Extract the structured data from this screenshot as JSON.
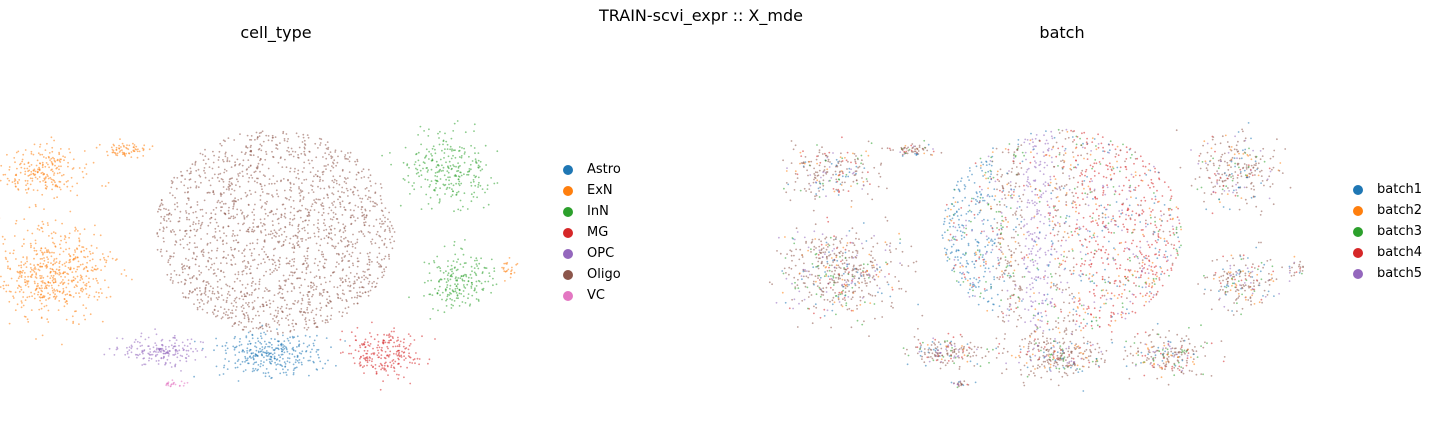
{
  "figure": {
    "suptitle": "TRAIN-scvi_expr :: X_mde"
  },
  "chart_data": [
    {
      "type": "scatter",
      "title": "cell_type",
      "xlabel": "",
      "ylabel": "",
      "axes_visible": false,
      "legend_placement": "right",
      "legend": [
        {
          "label": "Astro",
          "color": "#1f77b4"
        },
        {
          "label": "ExN",
          "color": "#ff7f0e"
        },
        {
          "label": "InN",
          "color": "#2ca02c"
        },
        {
          "label": "MG",
          "color": "#d62728"
        },
        {
          "label": "OPC",
          "color": "#9467bd"
        },
        {
          "label": "Oligo",
          "color": "#8c564b"
        },
        {
          "label": "VC",
          "color": "#e377c2"
        }
      ],
      "clusters": [
        {
          "category": "Oligo",
          "cx": 0.0,
          "cy": 0.0,
          "rx": 1.0,
          "ry": 1.0,
          "weight": 4.0
        },
        {
          "category": "ExN",
          "cx": -1.85,
          "cy": -0.5,
          "rx": 0.45,
          "ry": 0.55,
          "weight": 1.2
        },
        {
          "category": "ExN",
          "cx": -1.9,
          "cy": 0.75,
          "rx": 0.35,
          "ry": 0.3,
          "weight": 0.5
        },
        {
          "category": "ExN",
          "cx": -1.25,
          "cy": 1.0,
          "rx": 0.18,
          "ry": 0.08,
          "weight": 0.15
        },
        {
          "category": "ExN",
          "cx": 1.95,
          "cy": -0.45,
          "rx": 0.07,
          "ry": 0.12,
          "weight": 0.05
        },
        {
          "category": "InN",
          "cx": 1.45,
          "cy": 0.75,
          "rx": 0.35,
          "ry": 0.45,
          "weight": 0.6
        },
        {
          "category": "InN",
          "cx": 1.5,
          "cy": -0.6,
          "rx": 0.28,
          "ry": 0.35,
          "weight": 0.45
        },
        {
          "category": "Astro",
          "cx": -0.05,
          "cy": -1.5,
          "rx": 0.42,
          "ry": 0.28,
          "weight": 0.7
        },
        {
          "category": "MG",
          "cx": 0.9,
          "cy": -1.5,
          "rx": 0.32,
          "ry": 0.28,
          "weight": 0.5
        },
        {
          "category": "OPC",
          "cx": -0.95,
          "cy": -1.45,
          "rx": 0.3,
          "ry": 0.18,
          "weight": 0.4
        },
        {
          "category": "VC",
          "cx": -0.85,
          "cy": -1.85,
          "rx": 0.1,
          "ry": 0.04,
          "weight": 0.05
        }
      ]
    },
    {
      "type": "scatter",
      "title": "batch",
      "xlabel": "",
      "ylabel": "",
      "axes_visible": false,
      "legend_placement": "right",
      "legend": [
        {
          "label": "batch1",
          "color": "#1f77b4"
        },
        {
          "label": "batch2",
          "color": "#ff7f0e"
        },
        {
          "label": "batch3",
          "color": "#2ca02c"
        },
        {
          "label": "batch4",
          "color": "#d62728"
        },
        {
          "label": "batch5",
          "color": "#9467bd"
        }
      ],
      "same_embedding_as": "cell_type",
      "batch_mixing": "well mixed; batch1 enriched on left edge of Oligo cluster, batch5 stripe through Oligo center, batch4 enriched on right half of Oligo cluster"
    }
  ]
}
